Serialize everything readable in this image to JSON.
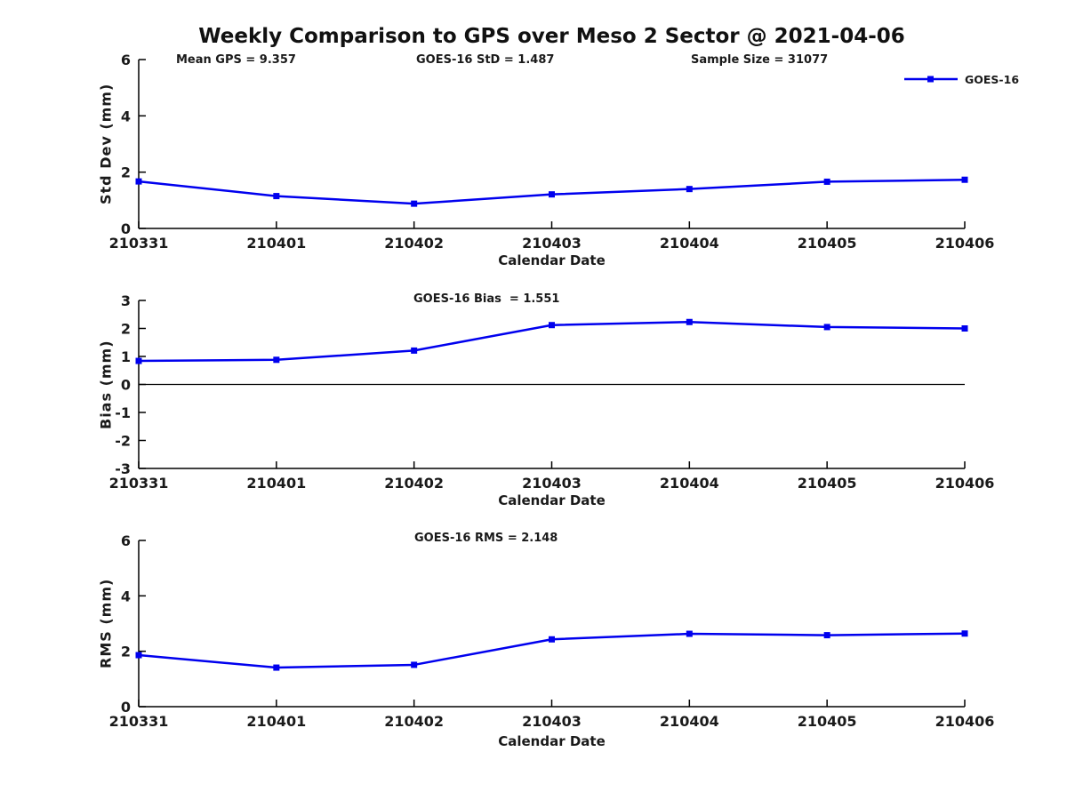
{
  "figure": {
    "title": "Weekly Comparison to GPS over Meso 2 Sector @ 2021-04-06",
    "background": "#ffffff",
    "series_color": "#0000ee",
    "axis_color": "#000000",
    "text_color": "#1a1a1a",
    "legend": {
      "label": "GOES-16"
    }
  },
  "annotations": {
    "mean_gps": "Mean GPS = 9.357",
    "goes16_std": "GOES-16 StD = 1.487",
    "sample_size": "Sample Size = 31077",
    "goes16_bias": "GOES-16 Bias  = 1.551",
    "goes16_rms": "GOES-16 RMS = 2.148"
  },
  "chart_data": [
    {
      "type": "line",
      "title": "",
      "ylabel": "Std Dev (mm)",
      "xlabel": "Calendar Date",
      "x": [
        "210331",
        "210401",
        "210402",
        "210403",
        "210404",
        "210405",
        "210406"
      ],
      "series": [
        {
          "name": "GOES-16",
          "values": [
            1.67,
            1.15,
            0.88,
            1.21,
            1.4,
            1.66,
            1.73
          ]
        }
      ],
      "ylim": [
        0,
        6
      ],
      "yticks": [
        0,
        2,
        4,
        6
      ],
      "grid": false,
      "zero_line": false,
      "marker": "square",
      "legend_position": "upper right"
    },
    {
      "type": "line",
      "title": "",
      "ylabel": "Bias (mm)",
      "xlabel": "Calendar Date",
      "x": [
        "210331",
        "210401",
        "210402",
        "210403",
        "210404",
        "210405",
        "210406"
      ],
      "series": [
        {
          "name": "GOES-16",
          "values": [
            0.84,
            0.88,
            1.21,
            2.12,
            2.23,
            2.05,
            2.0
          ]
        }
      ],
      "ylim": [
        -3,
        3
      ],
      "yticks": [
        -3,
        -2,
        -1,
        0,
        1,
        2,
        3
      ],
      "grid": false,
      "zero_line": true,
      "marker": "square",
      "legend_position": "none"
    },
    {
      "type": "line",
      "title": "",
      "ylabel": "RMS (mm)",
      "xlabel": "Calendar Date",
      "x": [
        "210331",
        "210401",
        "210402",
        "210403",
        "210404",
        "210405",
        "210406"
      ],
      "series": [
        {
          "name": "GOES-16",
          "values": [
            1.86,
            1.41,
            1.51,
            2.43,
            2.63,
            2.58,
            2.64
          ]
        }
      ],
      "ylim": [
        0,
        6
      ],
      "yticks": [
        0,
        2,
        4,
        6
      ],
      "grid": false,
      "zero_line": false,
      "marker": "square",
      "legend_position": "none"
    }
  ]
}
